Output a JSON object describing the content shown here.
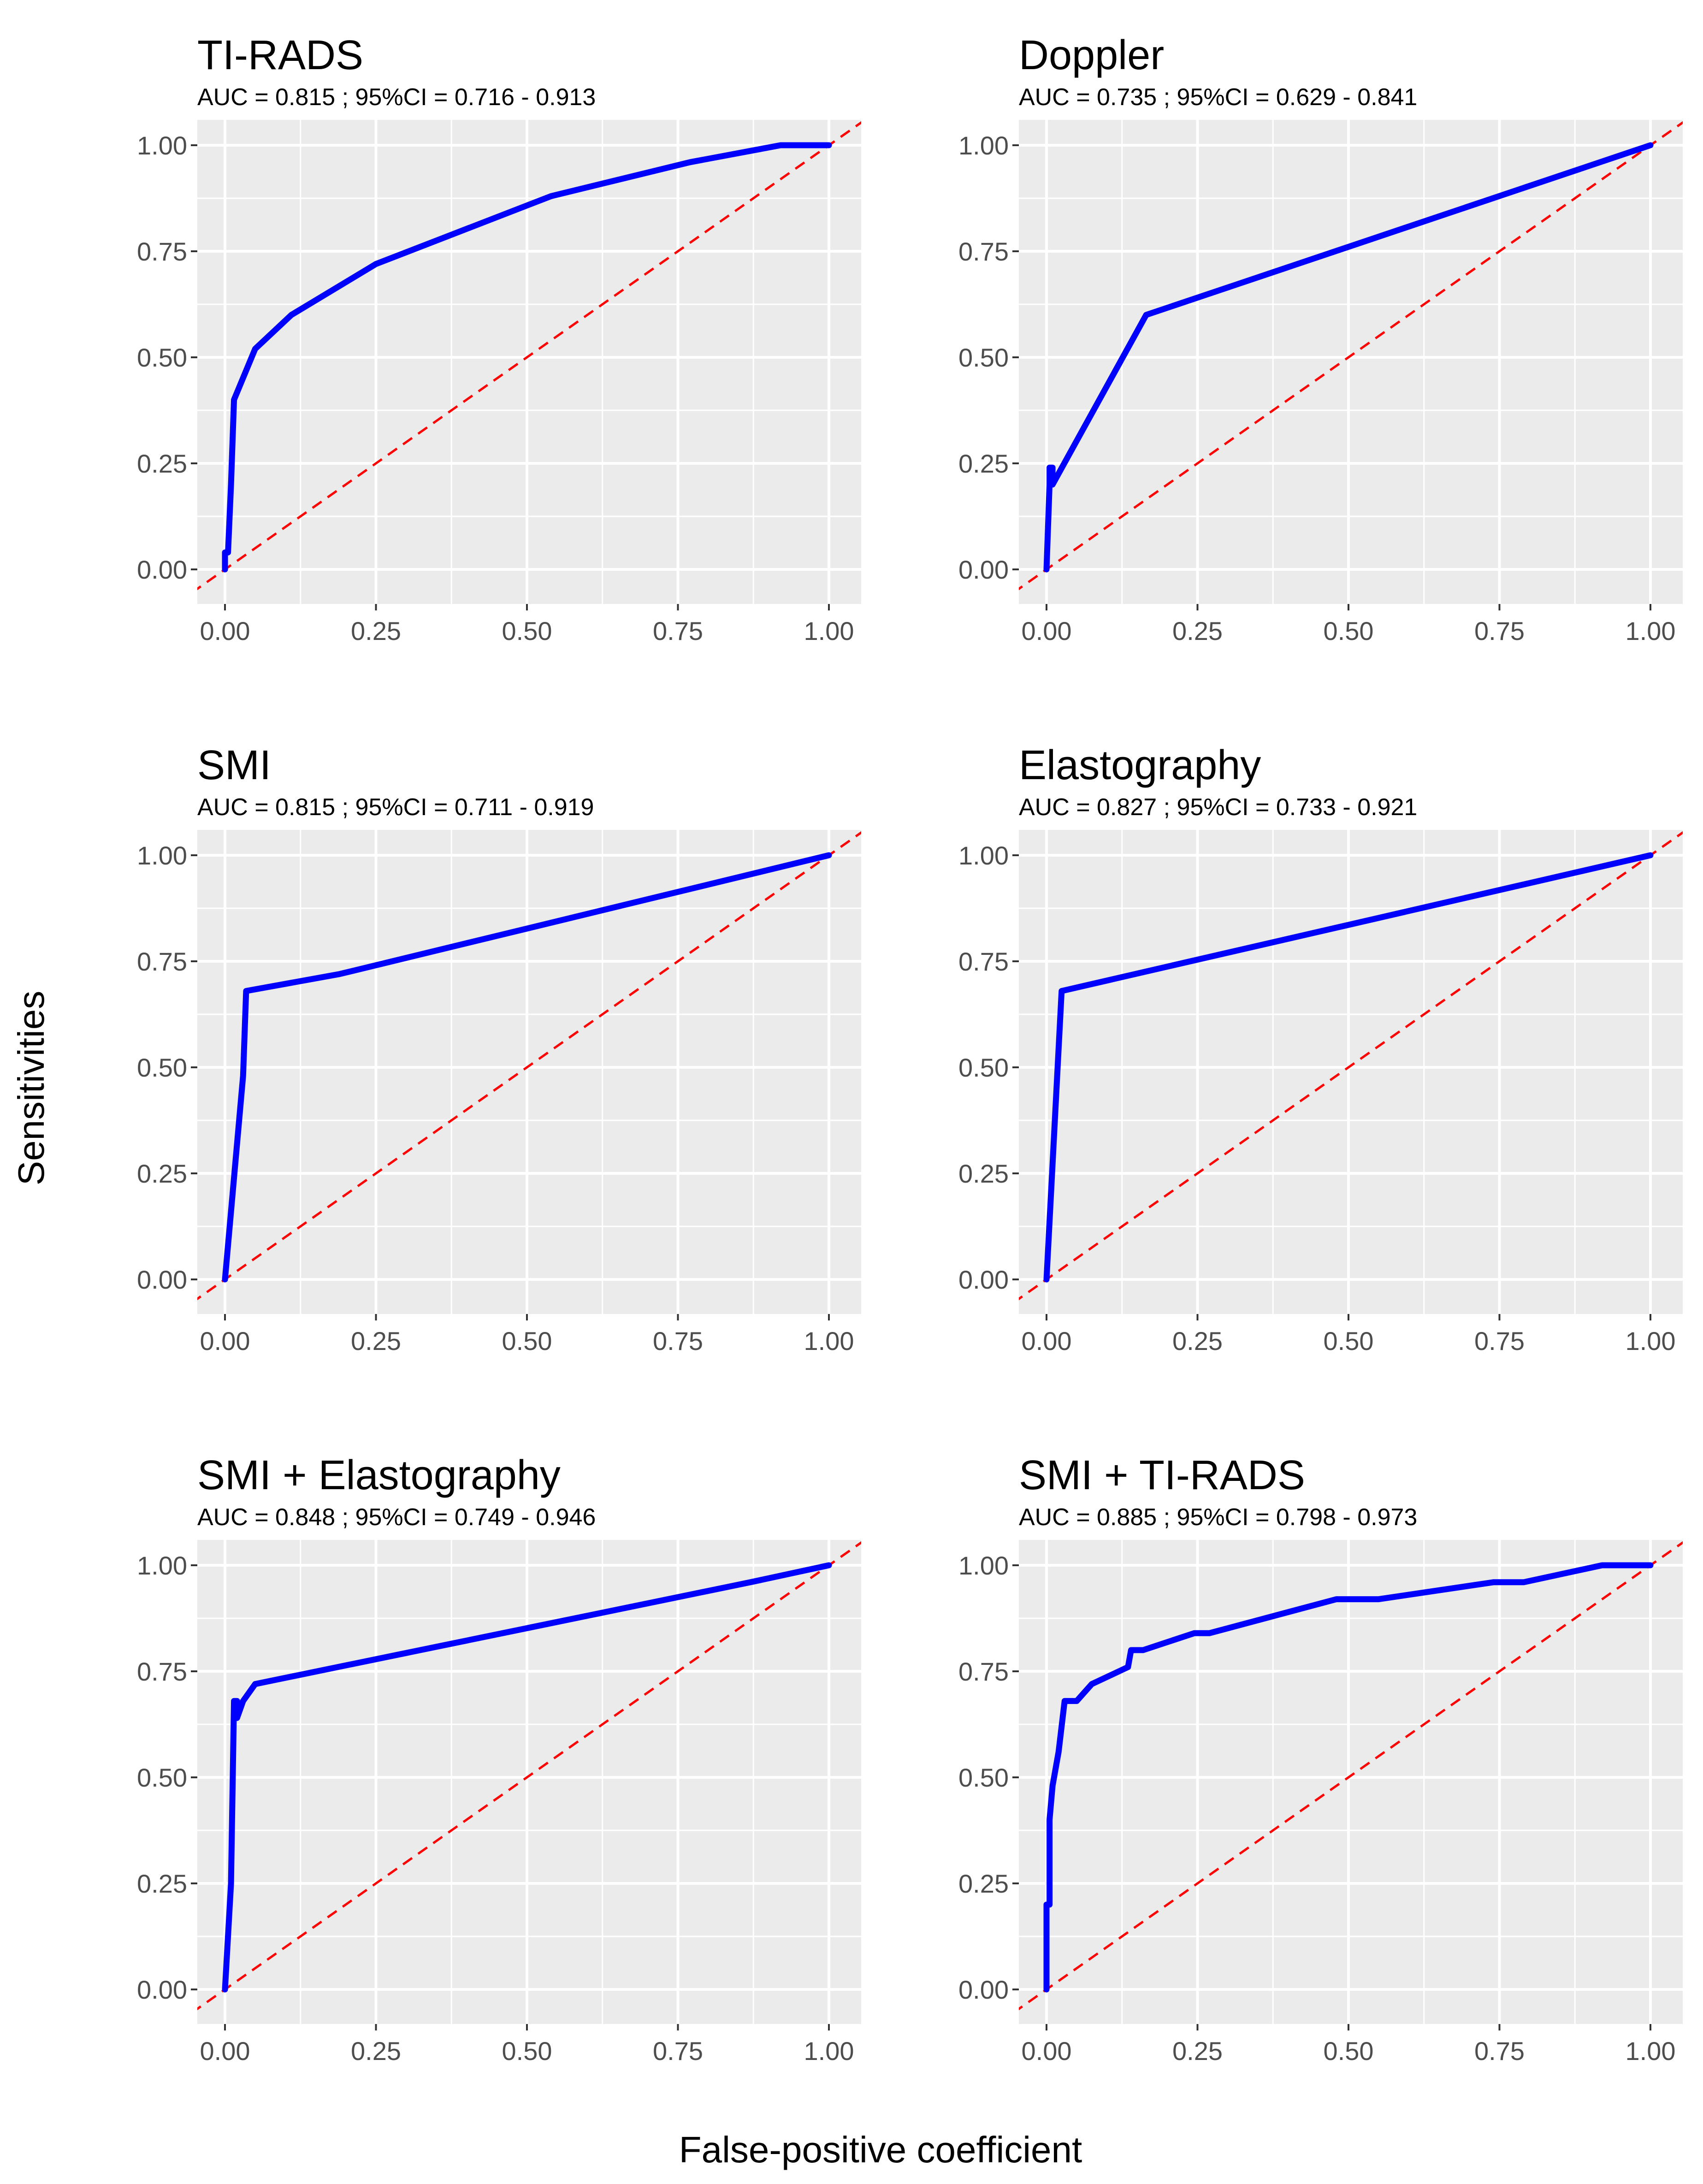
{
  "figure": {
    "xlabel": "False-positive coefficient",
    "ylabel": "Sensitivities"
  },
  "colors": {
    "roc_line": "#0000ff",
    "reference_line": "#ff0000",
    "panel_background": "#ebebeb",
    "grid": "#ffffff"
  },
  "chart_data": [
    {
      "type": "line",
      "title": "TI-RADS",
      "subtitle": "AUC =  0.815 ; 95%CI =  0.716  -  0.913",
      "xlabel": "False-positive coefficient",
      "ylabel": "Sensitivities",
      "xlim": [
        0,
        1
      ],
      "ylim": [
        0,
        1
      ],
      "xticks": [
        "0.00",
        "0.25",
        "0.50",
        "0.75",
        "1.00"
      ],
      "yticks": [
        "0.00",
        "0.25",
        "0.50",
        "0.75",
        "1.00"
      ],
      "series": [
        {
          "name": "ROC",
          "x": [
            0,
            0,
            0.005,
            0.01,
            0.015,
            0.05,
            0.11,
            0.25,
            0.54,
            0.77,
            0.92,
            1.0
          ],
          "y": [
            0,
            0.04,
            0.04,
            0.2,
            0.4,
            0.52,
            0.6,
            0.72,
            0.88,
            0.96,
            1.0,
            1.0
          ]
        }
      ],
      "reference": {
        "name": "chance",
        "x": [
          0,
          1
        ],
        "y": [
          0,
          1
        ]
      }
    },
    {
      "type": "line",
      "title": "Doppler",
      "subtitle": "AUC =  0.735 ; 95%CI =  0.629  -  0.841",
      "xlabel": "False-positive coefficient",
      "ylabel": "Sensitivities",
      "xlim": [
        0,
        1
      ],
      "ylim": [
        0,
        1
      ],
      "xticks": [
        "0.00",
        "0.25",
        "0.50",
        "0.75",
        "1.00"
      ],
      "yticks": [
        "0.00",
        "0.25",
        "0.50",
        "0.75",
        "1.00"
      ],
      "series": [
        {
          "name": "ROC",
          "x": [
            0,
            0.005,
            0.005,
            0.01,
            0.01,
            0.165,
            1.0
          ],
          "y": [
            0,
            0.2,
            0.24,
            0.24,
            0.2,
            0.6,
            1.0
          ]
        }
      ],
      "reference": {
        "name": "chance",
        "x": [
          0,
          1
        ],
        "y": [
          0,
          1
        ]
      }
    },
    {
      "type": "line",
      "title": "SMI",
      "subtitle": "AUC =  0.815 ; 95%CI =  0.711  -  0.919",
      "xlabel": "False-positive coefficient",
      "ylabel": "Sensitivities",
      "xlim": [
        0,
        1
      ],
      "ylim": [
        0,
        1
      ],
      "xticks": [
        "0.00",
        "0.25",
        "0.50",
        "0.75",
        "1.00"
      ],
      "yticks": [
        "0.00",
        "0.25",
        "0.50",
        "0.75",
        "1.00"
      ],
      "series": [
        {
          "name": "ROC",
          "x": [
            0,
            0.03,
            0.035,
            0.19,
            1.0
          ],
          "y": [
            0,
            0.48,
            0.68,
            0.72,
            1.0
          ]
        }
      ],
      "reference": {
        "name": "chance",
        "x": [
          0,
          1
        ],
        "y": [
          0,
          1
        ]
      }
    },
    {
      "type": "line",
      "title": "Elastography",
      "subtitle": "AUC =  0.827 ; 95%CI =  0.733  -  0.921",
      "xlabel": "False-positive coefficient",
      "ylabel": "Sensitivities",
      "xlim": [
        0,
        1
      ],
      "ylim": [
        0,
        1
      ],
      "xticks": [
        "0.00",
        "0.25",
        "0.50",
        "0.75",
        "1.00"
      ],
      "yticks": [
        "0.00",
        "0.25",
        "0.50",
        "0.75",
        "1.00"
      ],
      "series": [
        {
          "name": "ROC",
          "x": [
            0,
            0.025,
            1.0
          ],
          "y": [
            0,
            0.68,
            1.0
          ]
        }
      ],
      "reference": {
        "name": "chance",
        "x": [
          0,
          1
        ],
        "y": [
          0,
          1
        ]
      }
    },
    {
      "type": "line",
      "title": "SMI + Elastography",
      "subtitle": "AUC =  0.848 ; 95%CI =  0.749  -  0.946",
      "xlabel": "False-positive coefficient",
      "ylabel": "Sensitivities",
      "xlim": [
        0,
        1
      ],
      "ylim": [
        0,
        1
      ],
      "xticks": [
        "0.00",
        "0.25",
        "0.50",
        "0.75",
        "1.00"
      ],
      "yticks": [
        "0.00",
        "0.25",
        "0.50",
        "0.75",
        "1.00"
      ],
      "series": [
        {
          "name": "ROC",
          "x": [
            0,
            0.01,
            0.015,
            0.02,
            0.02,
            0.03,
            0.05,
            0.87,
            1.0
          ],
          "y": [
            0,
            0.25,
            0.68,
            0.68,
            0.64,
            0.68,
            0.72,
            0.96,
            1.0
          ]
        }
      ],
      "reference": {
        "name": "chance",
        "x": [
          0,
          1
        ],
        "y": [
          0,
          1
        ]
      }
    },
    {
      "type": "line",
      "title": "SMI + TI-RADS",
      "subtitle": "AUC =  0.885 ; 95%CI =  0.798  -  0.973",
      "xlabel": "False-positive coefficient",
      "ylabel": "Sensitivities",
      "xlim": [
        0,
        1
      ],
      "ylim": [
        0,
        1
      ],
      "xticks": [
        "0.00",
        "0.25",
        "0.50",
        "0.75",
        "1.00"
      ],
      "yticks": [
        "0.00",
        "0.25",
        "0.50",
        "0.75",
        "1.00"
      ],
      "series": [
        {
          "name": "ROC",
          "x": [
            0,
            0,
            0.005,
            0.005,
            0.01,
            0.02,
            0.03,
            0.04,
            0.05,
            0.075,
            0.135,
            0.14,
            0.16,
            0.245,
            0.27,
            0.48,
            0.55,
            0.74,
            0.79,
            0.92,
            1.0
          ],
          "y": [
            0,
            0.2,
            0.2,
            0.4,
            0.48,
            0.56,
            0.68,
            0.68,
            0.68,
            0.72,
            0.76,
            0.8,
            0.8,
            0.84,
            0.84,
            0.92,
            0.92,
            0.96,
            0.96,
            1.0,
            1.0
          ]
        }
      ],
      "reference": {
        "name": "chance",
        "x": [
          0,
          1
        ],
        "y": [
          0,
          1
        ]
      }
    }
  ]
}
